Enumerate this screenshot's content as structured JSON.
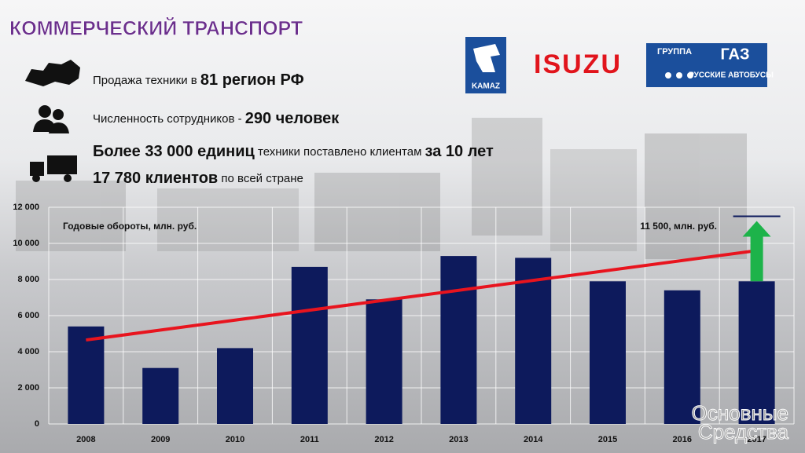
{
  "header": {
    "title": "КОММЕРЧЕСКИЙ ТРАНСПОРТ"
  },
  "info": [
    {
      "parts": [
        {
          "text": "Продажа техники в ",
          "bold": false
        },
        {
          "text": "81 регион РФ",
          "bold": true
        }
      ]
    },
    {
      "parts": [
        {
          "text": "Численность сотрудников - ",
          "bold": false
        },
        {
          "text": "290 человек",
          "bold": true
        }
      ]
    },
    {
      "parts": [
        {
          "text": "Более 33 000 единиц",
          "bold": true
        },
        {
          "text": " техники поставлено клиентам ",
          "bold": false
        },
        {
          "text": "за 10 лет",
          "bold": true
        }
      ]
    },
    {
      "parts": [
        {
          "text": "17 780 клиентов",
          "bold": true
        },
        {
          "text": " по всей стране",
          "bold": false
        }
      ]
    }
  ],
  "logos": {
    "kamaz": "KAMAZ",
    "isuzu": "ISUZU",
    "gaz_group": "ГРУППА",
    "gaz": "ГАЗ",
    "gaz_buses": "РУССКИЕ АВТОБУСЫ"
  },
  "watermark": [
    "Основные",
    "Средства"
  ],
  "chart_data": {
    "type": "bar",
    "annotation": "Годовые обороты, млн. руб.",
    "categories": [
      "2008",
      "2009",
      "2010",
      "2011",
      "2012",
      "2013",
      "2014",
      "2015",
      "2016",
      "2017"
    ],
    "values": [
      5400,
      3100,
      4200,
      8700,
      6900,
      9300,
      9200,
      7900,
      7400,
      7900
    ],
    "color": "#0d1a5c",
    "ylim": [
      0,
      12000
    ],
    "yticks": [
      0,
      {
        "value": 2000,
        "label": "2 000"
      },
      {
        "value": 4000,
        "label": "4 000"
      },
      {
        "value": 6000,
        "label": "6 000"
      },
      {
        "value": 8000,
        "label": "8 000"
      },
      {
        "value": 10000,
        "label": "10 000"
      },
      {
        "value": 12000,
        "label": "12 000"
      }
    ],
    "grid": true,
    "trendline": {
      "start": 4650,
      "end": 9600,
      "color": "#e8141e"
    },
    "target": {
      "value": 11500,
      "label": "11 500, млн. руб.",
      "color": "#0d1a5c",
      "arrow_color": "#1db34a"
    }
  }
}
